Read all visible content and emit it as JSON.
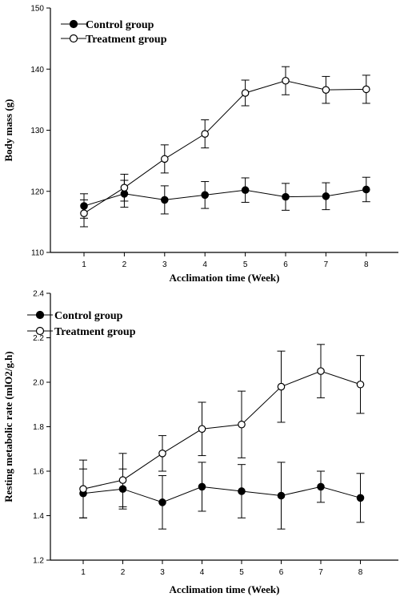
{
  "chart_data": [
    {
      "type": "line",
      "xlabel": "Acclimation time (Week)",
      "ylabel": "Body mass (g)",
      "ylim": [
        110,
        150
      ],
      "yticks": [
        110,
        120,
        130,
        140,
        150
      ],
      "x": [
        1,
        2,
        3,
        4,
        5,
        6,
        7,
        8
      ],
      "legend_position": "top-left",
      "series": [
        {
          "name": "Control group",
          "marker": "filled-circle",
          "values": [
            117.6,
            119.6,
            118.6,
            119.4,
            120.2,
            119.1,
            119.2,
            120.3
          ],
          "errors": [
            2.0,
            2.2,
            2.3,
            2.2,
            2.0,
            2.2,
            2.2,
            2.0
          ]
        },
        {
          "name": "Treatment group",
          "marker": "open-circle",
          "values": [
            116.4,
            120.6,
            125.3,
            129.4,
            136.1,
            138.1,
            136.6,
            136.7
          ],
          "errors": [
            2.2,
            2.2,
            2.3,
            2.3,
            2.1,
            2.3,
            2.2,
            2.3
          ]
        }
      ]
    },
    {
      "type": "line",
      "xlabel": "Acclimation time (Week)",
      "ylabel": "Resting metabolic rate (mlO2/g.h)",
      "ylim": [
        1.2,
        2.4
      ],
      "yticks": [
        1.2,
        1.4,
        1.6,
        1.8,
        2.0,
        2.2,
        2.4
      ],
      "x": [
        1,
        2,
        3,
        4,
        5,
        6,
        7,
        8
      ],
      "legend_position": "top-left",
      "series": [
        {
          "name": "Control group",
          "marker": "filled-circle",
          "values": [
            1.5,
            1.52,
            1.46,
            1.53,
            1.51,
            1.49,
            1.53,
            1.48
          ],
          "errors": [
            0.11,
            0.09,
            0.12,
            0.11,
            0.12,
            0.15,
            0.07,
            0.11
          ]
        },
        {
          "name": "Treatment group",
          "marker": "open-circle",
          "values": [
            1.52,
            1.56,
            1.68,
            1.79,
            1.81,
            1.98,
            2.05,
            1.99
          ],
          "errors": [
            0.13,
            0.12,
            0.08,
            0.12,
            0.15,
            0.16,
            0.12,
            0.13
          ]
        }
      ]
    }
  ]
}
